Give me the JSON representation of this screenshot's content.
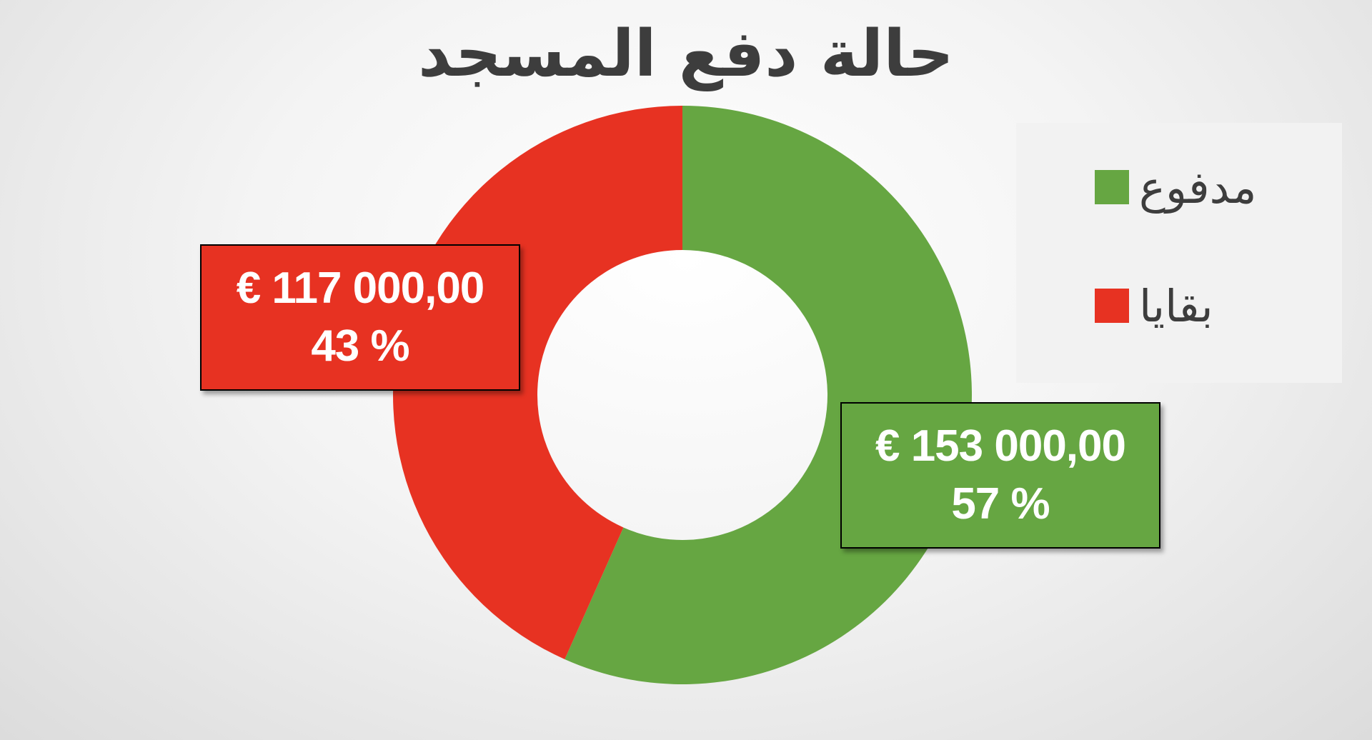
{
  "chart_data": {
    "type": "pie",
    "title": "حالة دفع المسجد",
    "donut": true,
    "legend_position": "right",
    "slices": [
      {
        "name": "مدفوع",
        "value": 153000,
        "value_label": "€ 153 000,00",
        "percent_label": "57 %",
        "color": "#66a642"
      },
      {
        "name": "بقايا",
        "value": 117000,
        "value_label": "€ 117 000,00",
        "percent_label": "43 %",
        "color": "#e73222"
      }
    ]
  }
}
